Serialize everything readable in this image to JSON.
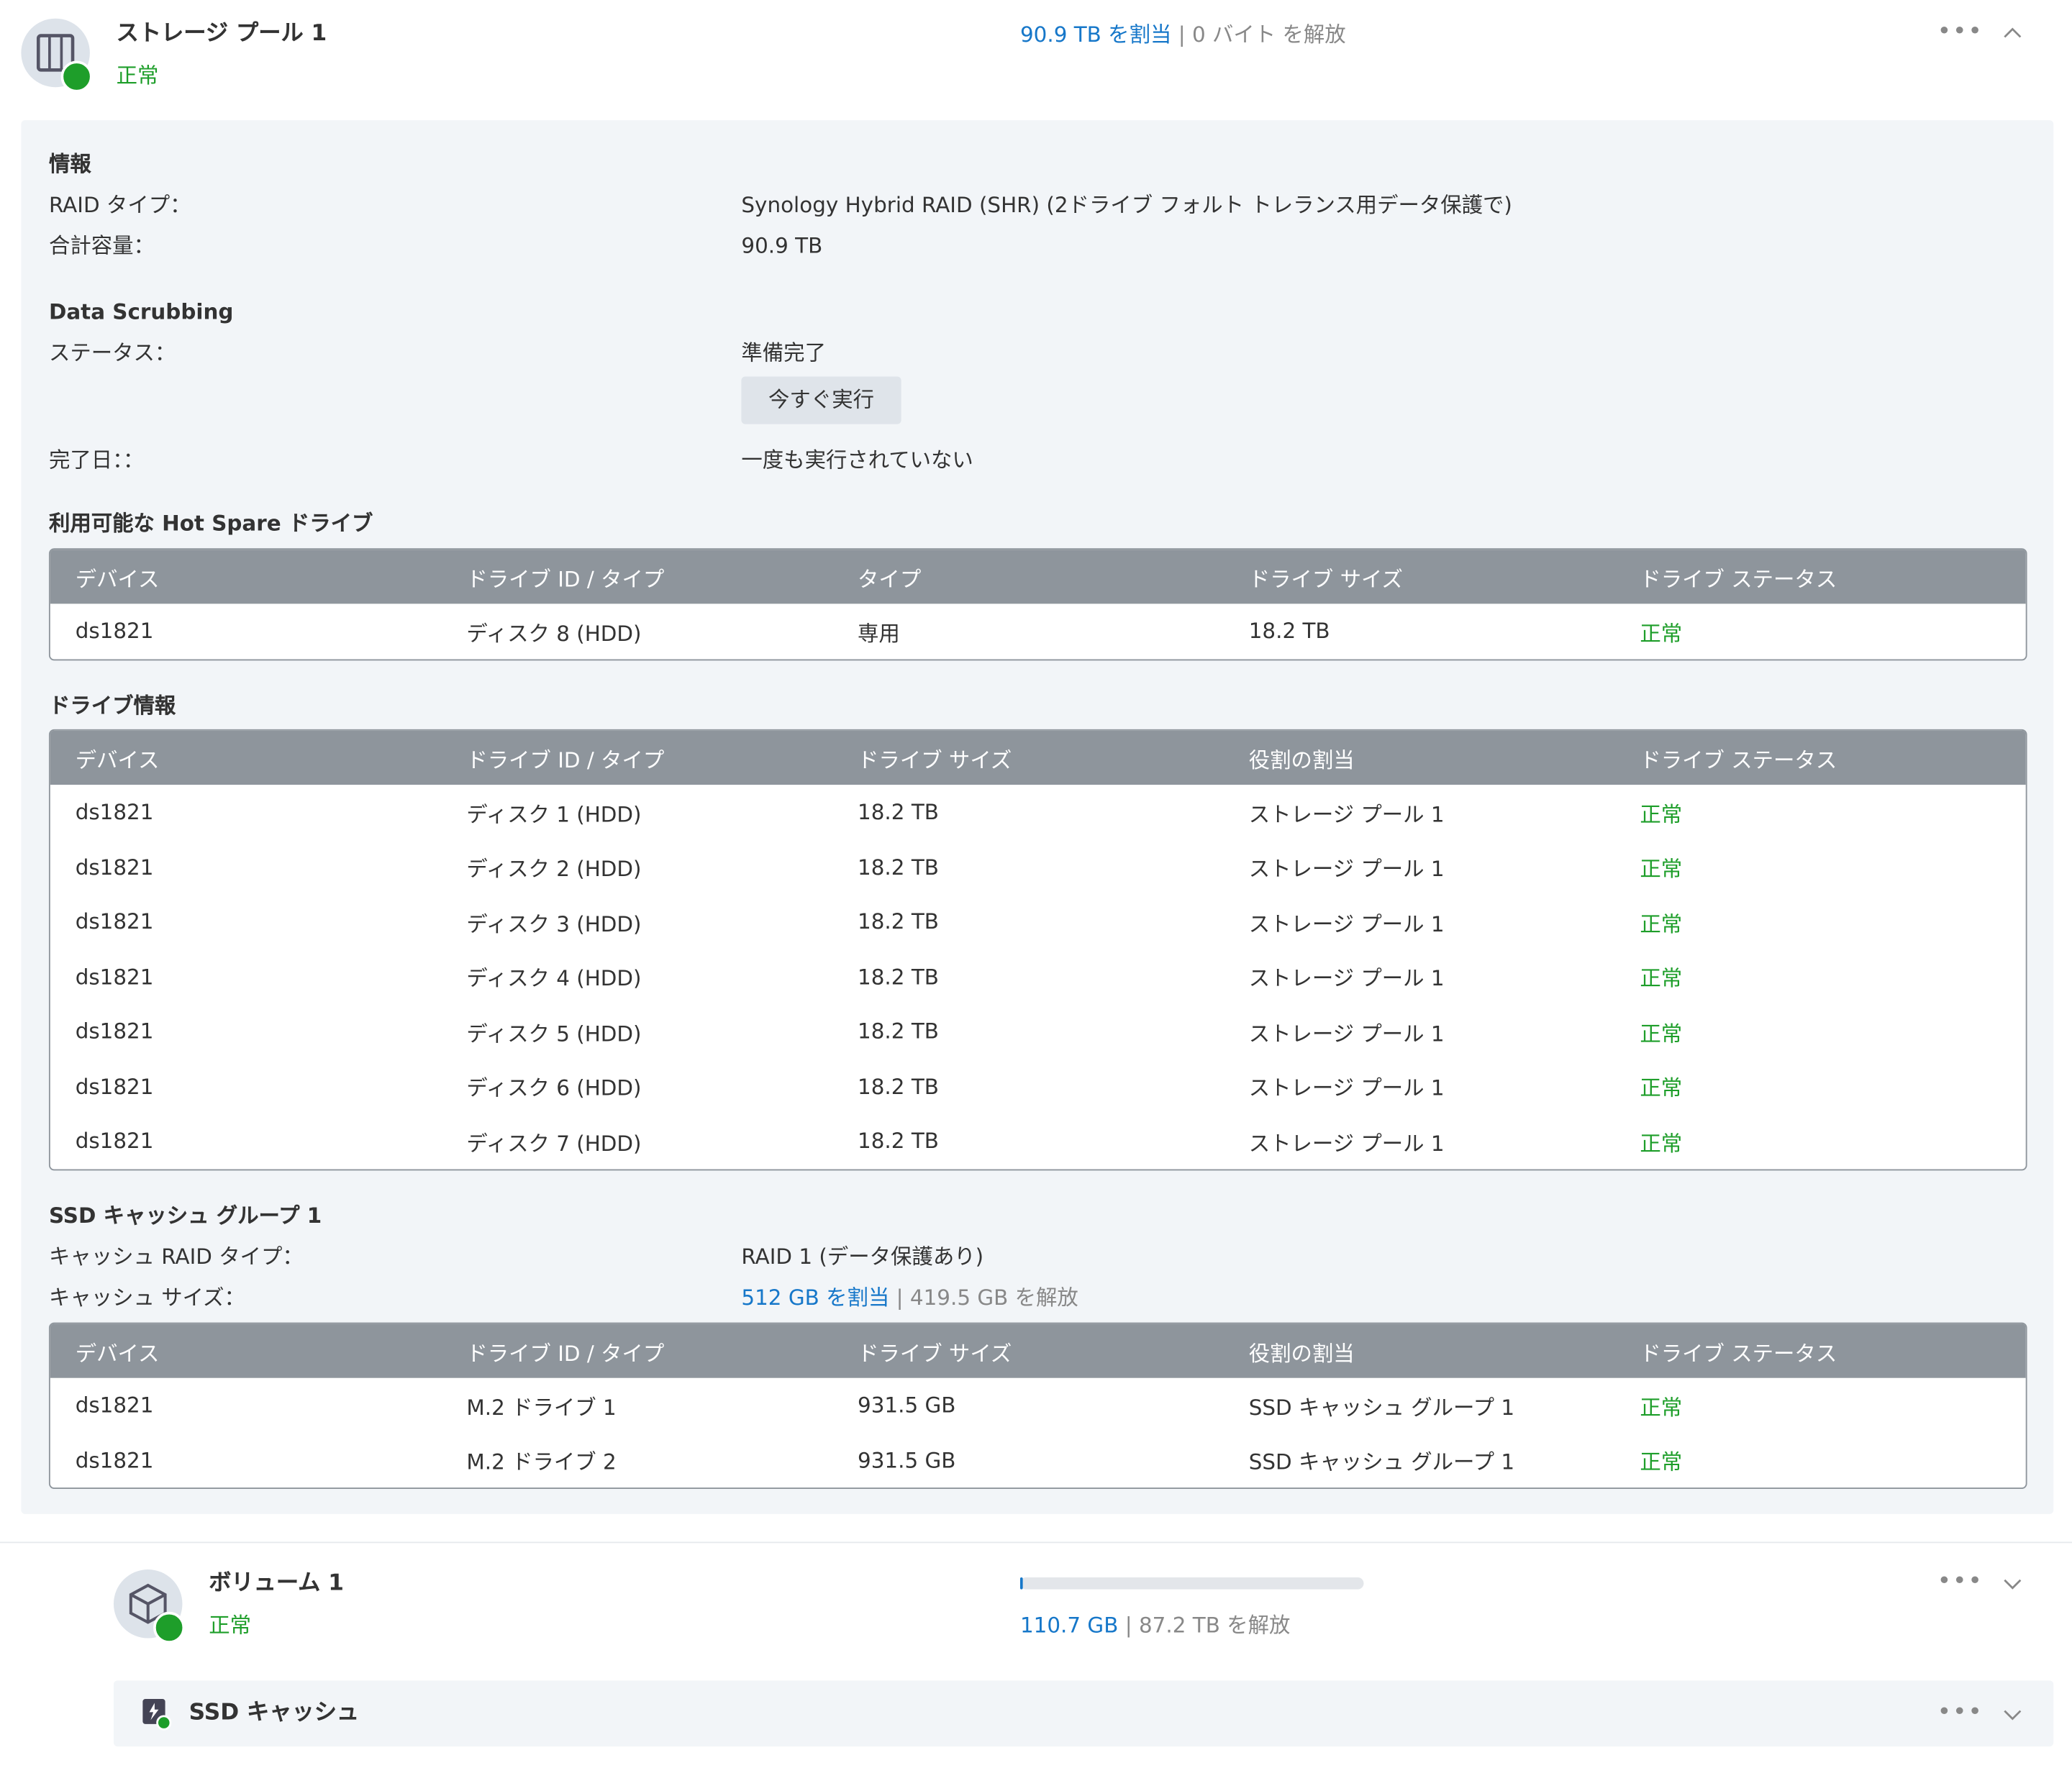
{
  "pool": {
    "title": "ストレージ プール 1",
    "status": "正常",
    "allocated": "90.9 TB を割当",
    "separator": "|",
    "free": "0 バイト を解放"
  },
  "info": {
    "heading": "情報",
    "rows": [
      [
        "RAID タイプ：",
        "Synology Hybrid RAID (SHR) (2ドライブ フォルト トレランス用データ保護で)"
      ],
      [
        "合計容量：",
        "90.9 TB"
      ]
    ]
  },
  "scrubbing": {
    "heading": "Data Scrubbing",
    "status_label": "ステータス：",
    "status": "準備完了",
    "button": "今すぐ実行",
    "date_label": "完了日：：",
    "date": "一度も実行されていない"
  },
  "hot_spare": {
    "heading": "利用可能な Hot Spare ドライブ",
    "columns": [
      "デバイス",
      "ドライブ ID / タイプ",
      "タイプ",
      "ドライブ サイズ",
      "ドライブ ステータス"
    ],
    "rows": [
      [
        "ds1821",
        "ディスク 8 (HDD)",
        "専用",
        "18.2 TB",
        "正常"
      ]
    ]
  },
  "drives": {
    "heading": "ドライブ情報",
    "columns": [
      "デバイス",
      "ドライブ ID / タイプ",
      "ドライブ サイズ",
      "役割の割当",
      "ドライブ ステータス"
    ],
    "rows": [
      [
        "ds1821",
        "ディスク 1 (HDD)",
        "18.2 TB",
        "ストレージ プール 1",
        "正常"
      ],
      [
        "ds1821",
        "ディスク 2 (HDD)",
        "18.2 TB",
        "ストレージ プール 1",
        "正常"
      ],
      [
        "ds1821",
        "ディスク 3 (HDD)",
        "18.2 TB",
        "ストレージ プール 1",
        "正常"
      ],
      [
        "ds1821",
        "ディスク 4 (HDD)",
        "18.2 TB",
        "ストレージ プール 1",
        "正常"
      ],
      [
        "ds1821",
        "ディスク 5 (HDD)",
        "18.2 TB",
        "ストレージ プール 1",
        "正常"
      ],
      [
        "ds1821",
        "ディスク 6 (HDD)",
        "18.2 TB",
        "ストレージ プール 1",
        "正常"
      ],
      [
        "ds1821",
        "ディスク 7 (HDD)",
        "18.2 TB",
        "ストレージ プール 1",
        "正常"
      ]
    ]
  },
  "cache": {
    "heading": "SSD キャッシュ グループ 1",
    "raid_label": "キャッシュ RAID タイプ：",
    "raid": "RAID 1 (データ保護あり)",
    "size_label": "キャッシュ サイズ：",
    "allocated": "512 GB を割当",
    "separator": "|",
    "free": "419.5 GB を解放",
    "columns": [
      "デバイス",
      "ドライブ ID / タイプ",
      "ドライブ サイズ",
      "役割の割当",
      "ドライブ ステータス"
    ],
    "rows": [
      [
        "ds1821",
        "M.2 ドライブ 1",
        "931.5 GB",
        "SSD キャッシュ グループ 1",
        "正常"
      ],
      [
        "ds1821",
        "M.2 ドライブ 2",
        "931.5 GB",
        "SSD キャッシュ グループ 1",
        "正常"
      ]
    ]
  },
  "volume": {
    "title": "ボリューム 1",
    "status": "正常",
    "used": "110.7 GB",
    "separator": "|",
    "free": "87.2 TB を解放"
  },
  "ssd_cache_bar": {
    "title": "SSD キャッシュ"
  }
}
